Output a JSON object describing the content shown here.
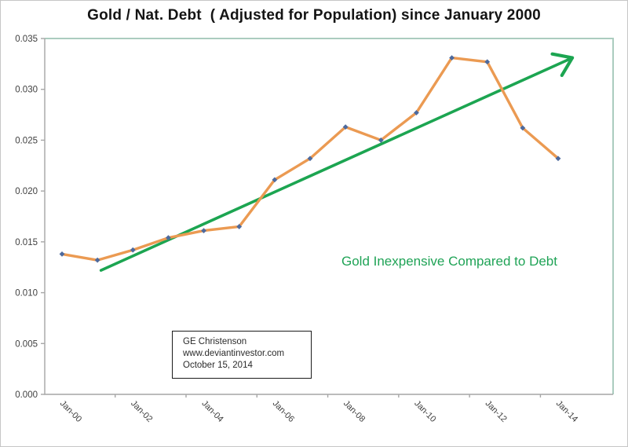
{
  "chart_data": {
    "type": "line",
    "title": "Gold / Nat. Debt  ( Adjusted for Population) since January 2000",
    "categories": [
      "Jan-00",
      "Jan-01",
      "Jan-02",
      "Jan-03",
      "Jan-04",
      "Jan-05",
      "Jan-06",
      "Jan-07",
      "Jan-08",
      "Jan-09",
      "Jan-10",
      "Jan-11",
      "Jan-12",
      "Jan-13",
      "Jan-14"
    ],
    "values": [
      0.0138,
      0.0132,
      0.0142,
      0.0154,
      0.0161,
      0.0165,
      0.0211,
      0.0232,
      0.0263,
      0.025,
      0.0277,
      0.0331,
      0.0327,
      0.0262,
      0.0232
    ],
    "xlabel": "",
    "ylabel": "",
    "ylim": [
      0,
      0.035
    ],
    "y_tick_step": 0.005,
    "y_tick_labels": [
      "0.000",
      "0.005",
      "0.010",
      "0.015",
      "0.020",
      "0.025",
      "0.030",
      "0.035"
    ],
    "x_tick_labels": [
      "Jan-00",
      "Jan-02",
      "Jan-04",
      "Jan-06",
      "Jan-08",
      "Jan-10",
      "Jan-12",
      "Jan-14"
    ],
    "grid": false,
    "legend_position": "none",
    "trend_arrow": {
      "start_index": 1.1,
      "start_value": 0.0122,
      "end_index": 14.4,
      "end_value": 0.0331
    }
  },
  "annotations": {
    "trend_label": "Gold Inexpensive Compared to Debt",
    "source_box_lines": [
      "GE Christenson",
      "www.deviantinvestor.com",
      "October 15, 2014"
    ]
  },
  "colors": {
    "series_line": "#eb9a52",
    "marker": "#4d6a9e",
    "trend_arrow": "#1ca551",
    "annotation_text": "#1fa356",
    "axis_line": "#a6a6a6",
    "plot_border": "#abccbf",
    "tick_text": "#404040",
    "title_text": "#141414",
    "source_box_border": "#1b1b1b"
  }
}
